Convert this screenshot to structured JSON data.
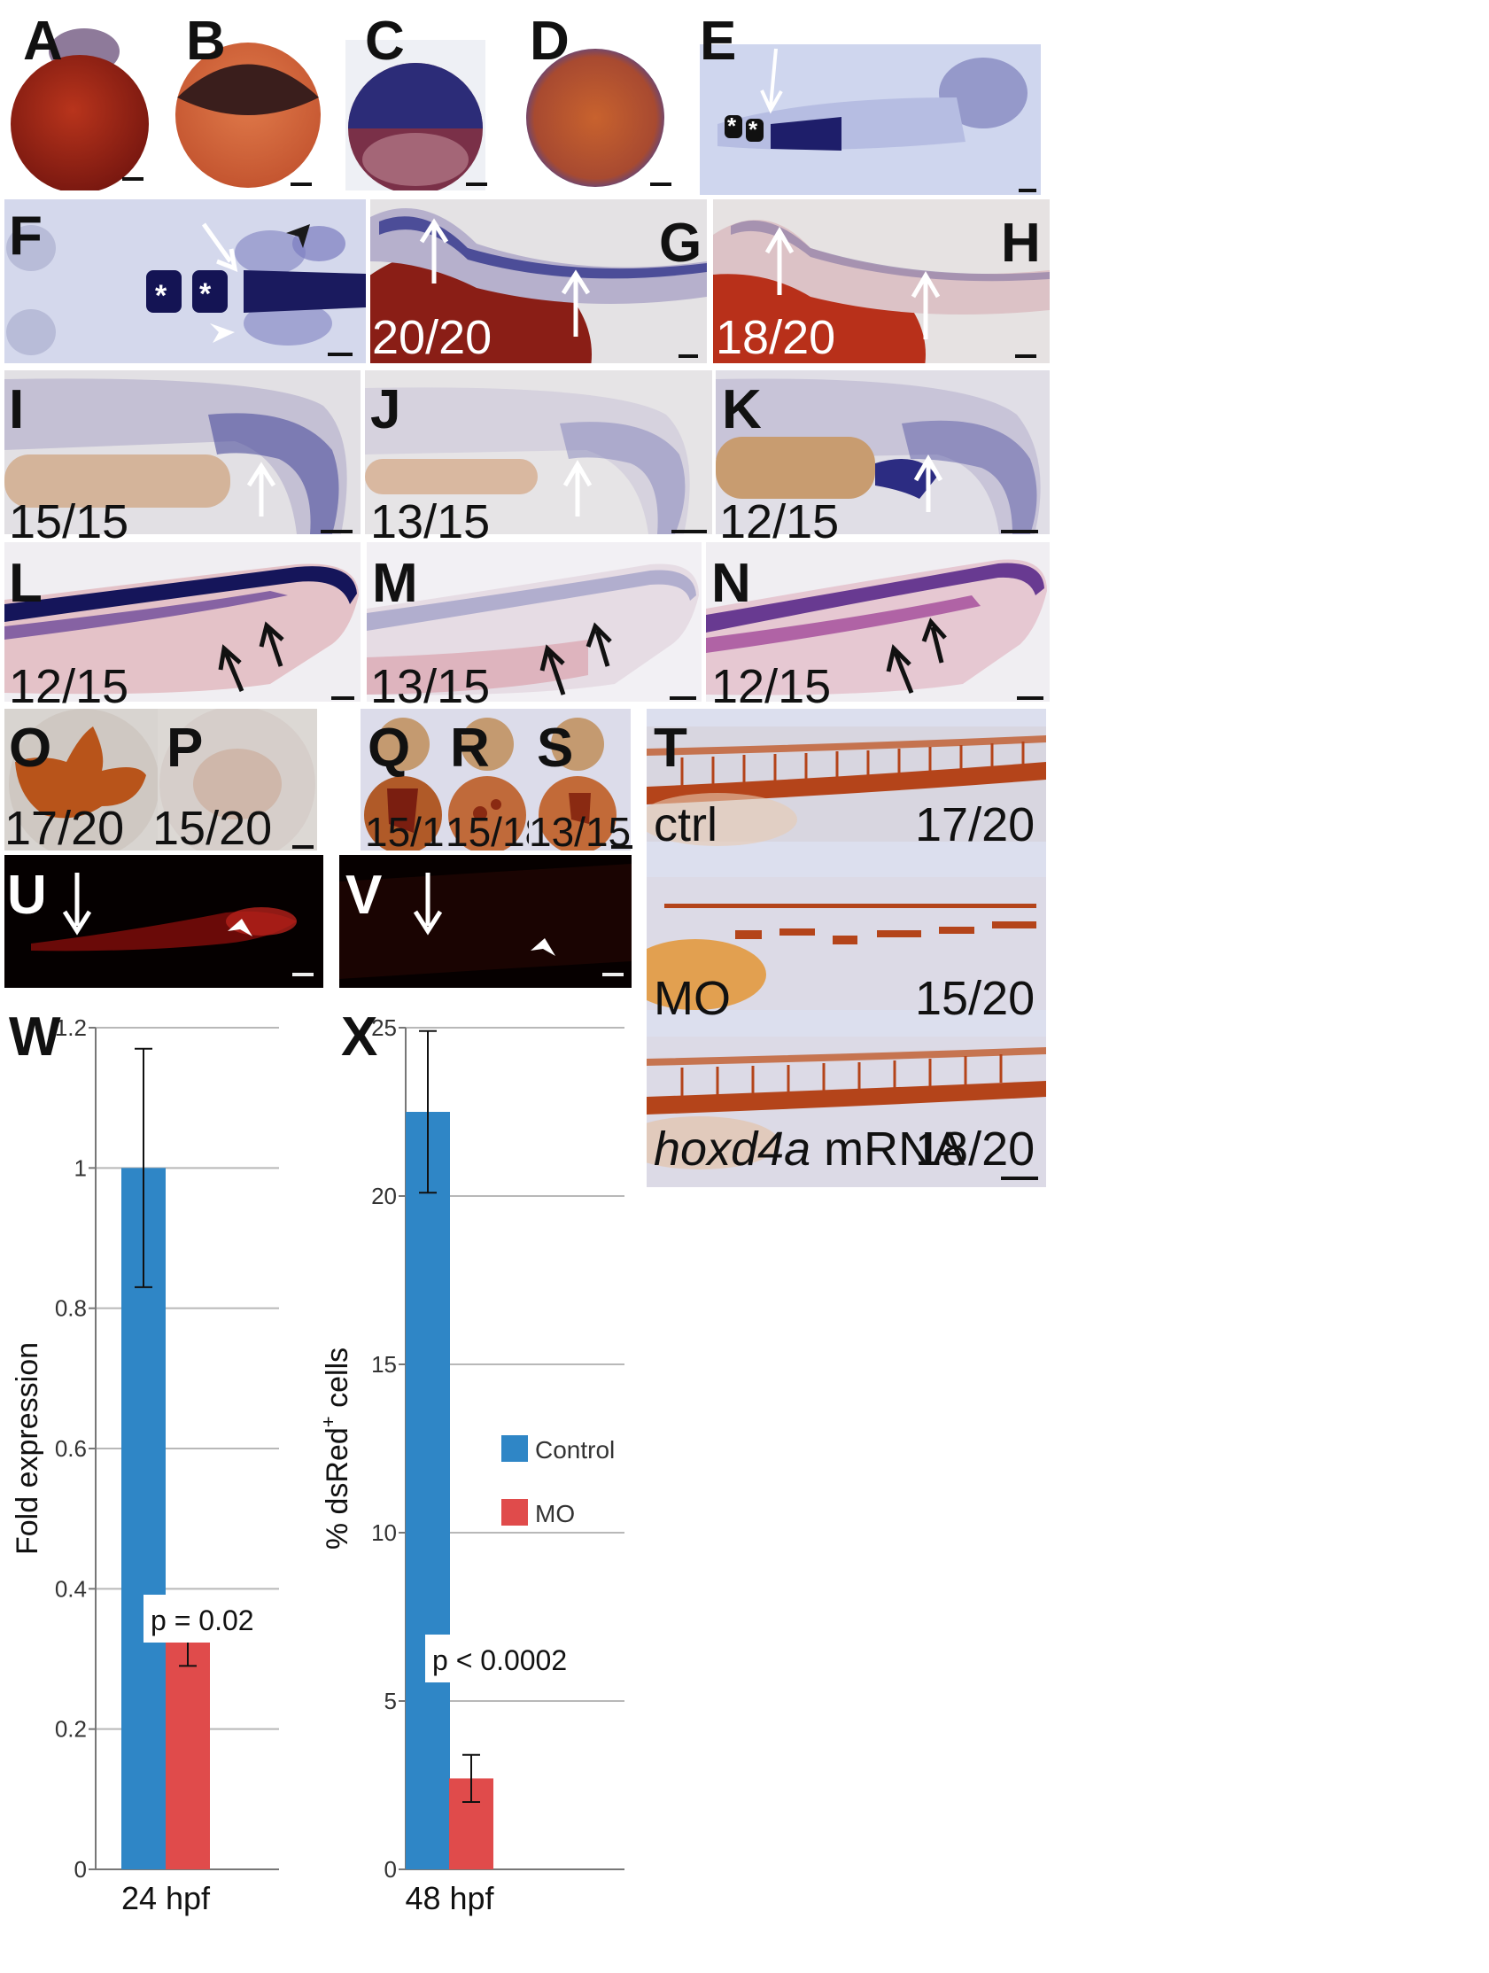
{
  "panels": {
    "A": {
      "label": "A"
    },
    "B": {
      "label": "B"
    },
    "C": {
      "label": "C"
    },
    "D": {
      "label": "D"
    },
    "E": {
      "label": "E"
    },
    "F": {
      "label": "F"
    },
    "G": {
      "label": "G",
      "count": "20/20"
    },
    "H": {
      "label": "H",
      "count": "18/20"
    },
    "I": {
      "label": "I",
      "count": "15/15"
    },
    "J": {
      "label": "J",
      "count": "13/15"
    },
    "K": {
      "label": "K",
      "count": "12/15"
    },
    "L": {
      "label": "L",
      "count": "12/15"
    },
    "M": {
      "label": "M",
      "count": "13/15"
    },
    "N": {
      "label": "N",
      "count": "12/15"
    },
    "O": {
      "label": "O",
      "count": "17/20"
    },
    "P": {
      "label": "P",
      "count": "15/20"
    },
    "Q": {
      "label": "Q",
      "count": "15/15"
    },
    "R": {
      "label": "R",
      "count": "15/18"
    },
    "S": {
      "label": "S",
      "count": "13/15"
    },
    "T": {
      "label": "T",
      "rows": [
        {
          "condition": "ctrl",
          "count": "17/20"
        },
        {
          "condition": "MO",
          "count": "15/20"
        },
        {
          "condition_italic": "hoxd4a",
          "condition_rest": " mRNA",
          "count": "18/20"
        }
      ]
    },
    "U": {
      "label": "U"
    },
    "V": {
      "label": "V"
    }
  },
  "colors": {
    "control": "#2f86c6",
    "mo": "#e04b4b",
    "stain_blue": "#3a3d8f",
    "stain_brown": "#b4441a"
  },
  "chart_data": [
    {
      "panel": "W",
      "label": "W",
      "type": "bar",
      "ylabel": "Fold expression",
      "xlabel": "24 hpf",
      "ylim": [
        0,
        1.2
      ],
      "yticks": [
        "0",
        "0.2",
        "0.4",
        "0.6",
        "0.8",
        "1",
        "1.2"
      ],
      "grid": true,
      "series": [
        {
          "name": "Control",
          "values": [
            1.0
          ],
          "error": [
            0.17
          ]
        },
        {
          "name": "MO",
          "values": [
            0.33
          ],
          "error": [
            0.04
          ]
        }
      ],
      "annotation": "p = 0.02"
    },
    {
      "panel": "X",
      "label": "X",
      "type": "bar",
      "ylabel_main": "% dsRed",
      "ylabel_sup": "+",
      "ylabel_rest": " cells",
      "xlabel": "48 hpf",
      "ylim": [
        0,
        25
      ],
      "yticks": [
        "0",
        "5",
        "10",
        "15",
        "20",
        "25"
      ],
      "grid": true,
      "series": [
        {
          "name": "Control",
          "values": [
            22.5
          ],
          "error": [
            2.4
          ]
        },
        {
          "name": "MO",
          "values": [
            2.7
          ],
          "error": [
            0.7
          ]
        }
      ],
      "annotation": "p < 0.0002",
      "legend": {
        "placement": "right",
        "entries": [
          "Control",
          "MO"
        ]
      }
    }
  ]
}
